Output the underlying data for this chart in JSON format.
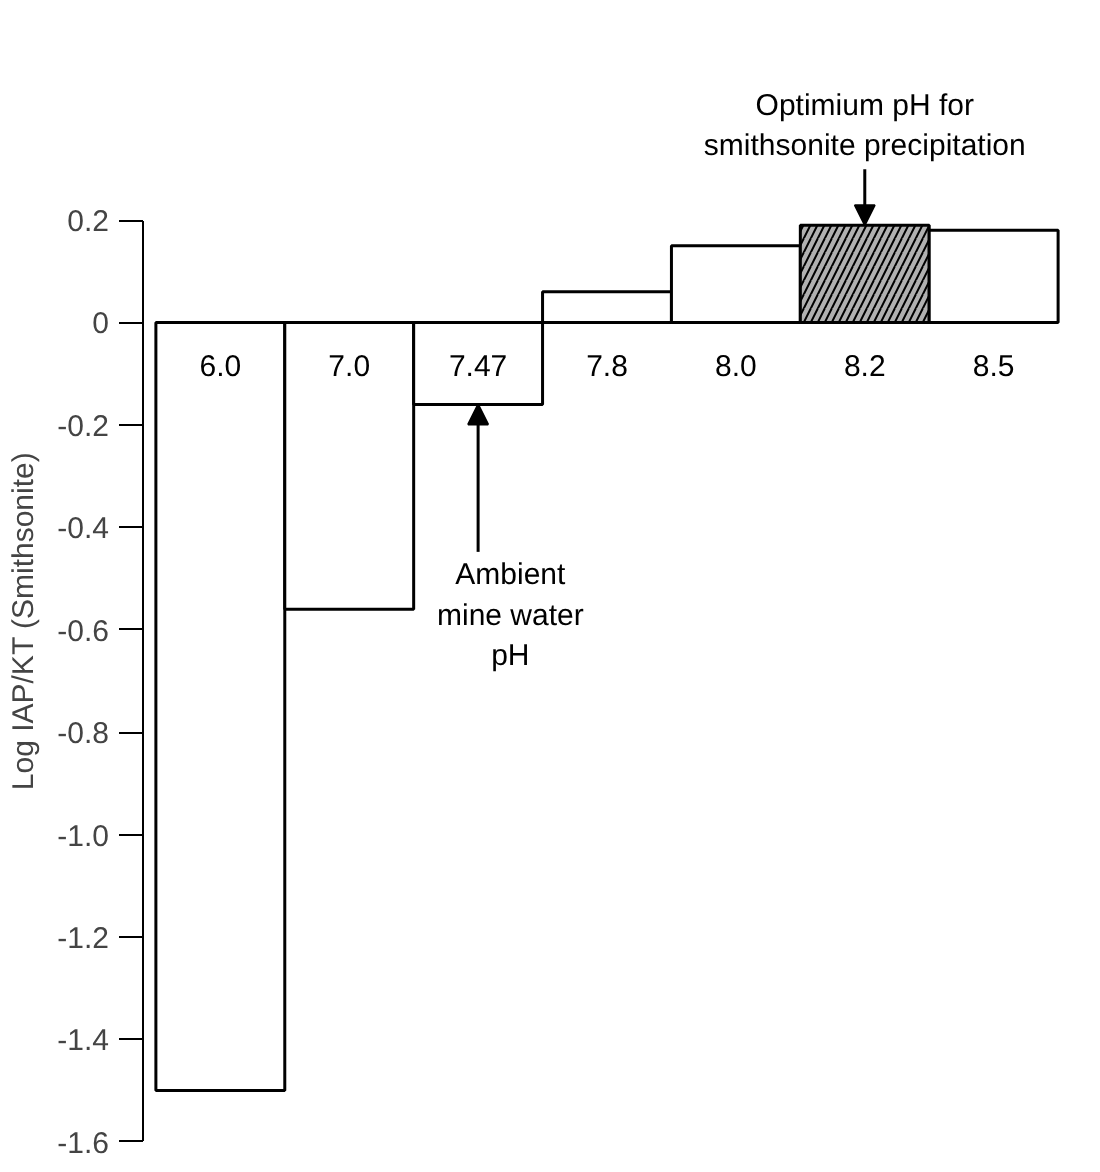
{
  "chart_data": {
    "type": "bar",
    "categories": [
      "6.0",
      "7.0",
      "7.47",
      "7.8",
      "8.0",
      "8.2",
      "8.5"
    ],
    "values": [
      -1.5,
      -0.56,
      -0.16,
      0.06,
      0.15,
      0.19,
      0.18
    ],
    "colors": [
      "#ffffff",
      "#ffffff",
      "#ffffff",
      "#ffffff",
      "#ffffff",
      "#b0b0b0",
      "#ffffff"
    ],
    "ylabel": "Log IAP/KT (Smithsonite)",
    "ylim": [
      -1.6,
      0.2
    ],
    "yticks": [
      {
        "value": 0.2,
        "label": "0.2"
      },
      0,
      {
        "value": -0.2,
        "label": "-0.2"
      },
      {
        "value": -0.4,
        "label": "-0.4"
      },
      {
        "value": -0.6,
        "label": "-0.6"
      },
      {
        "value": -0.8,
        "label": "-0.8"
      },
      {
        "value": -1.0,
        "label": "-1.0"
      },
      {
        "value": -1.2,
        "label": "-1.2"
      },
      {
        "value": -1.4,
        "label": "-1.4"
      },
      {
        "value": -1.6,
        "label": "-1.6"
      }
    ],
    "grid": false,
    "annotations": [
      {
        "text": "Optimium pH for\nsmithsonite precipitation",
        "x": "8.2",
        "y": 0.19
      },
      {
        "text": "Ambient\nmine water\npH",
        "x": "7.47",
        "y": -0.16
      }
    ]
  }
}
